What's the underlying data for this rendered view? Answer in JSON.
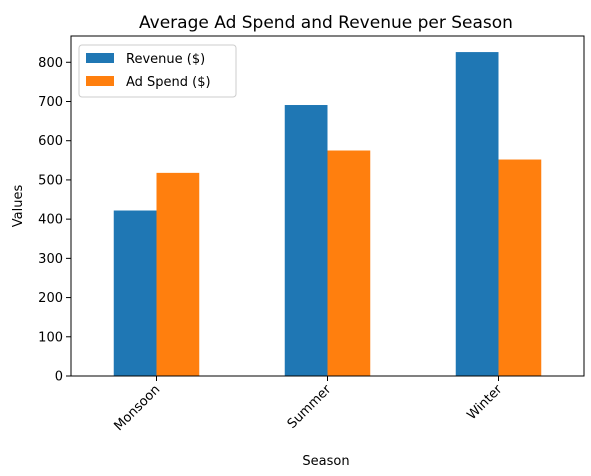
{
  "chart_data": {
    "type": "bar",
    "title": "Average Ad Spend and Revenue per Season",
    "xlabel": "Season",
    "ylabel": "Values",
    "categories": [
      "Monsoon",
      "Summer",
      "Winter"
    ],
    "series": [
      {
        "name": "Revenue ($)",
        "values": [
          422,
          691,
          826
        ],
        "color": "#1f77b4"
      },
      {
        "name": "Ad Spend ($)",
        "values": [
          518,
          575,
          552
        ],
        "color": "#ff7f0e"
      }
    ],
    "ylim": [
      0,
      867
    ],
    "yticks": [
      0,
      100,
      200,
      300,
      400,
      500,
      600,
      700,
      800
    ],
    "grid": false,
    "legend_position": "top-left"
  }
}
